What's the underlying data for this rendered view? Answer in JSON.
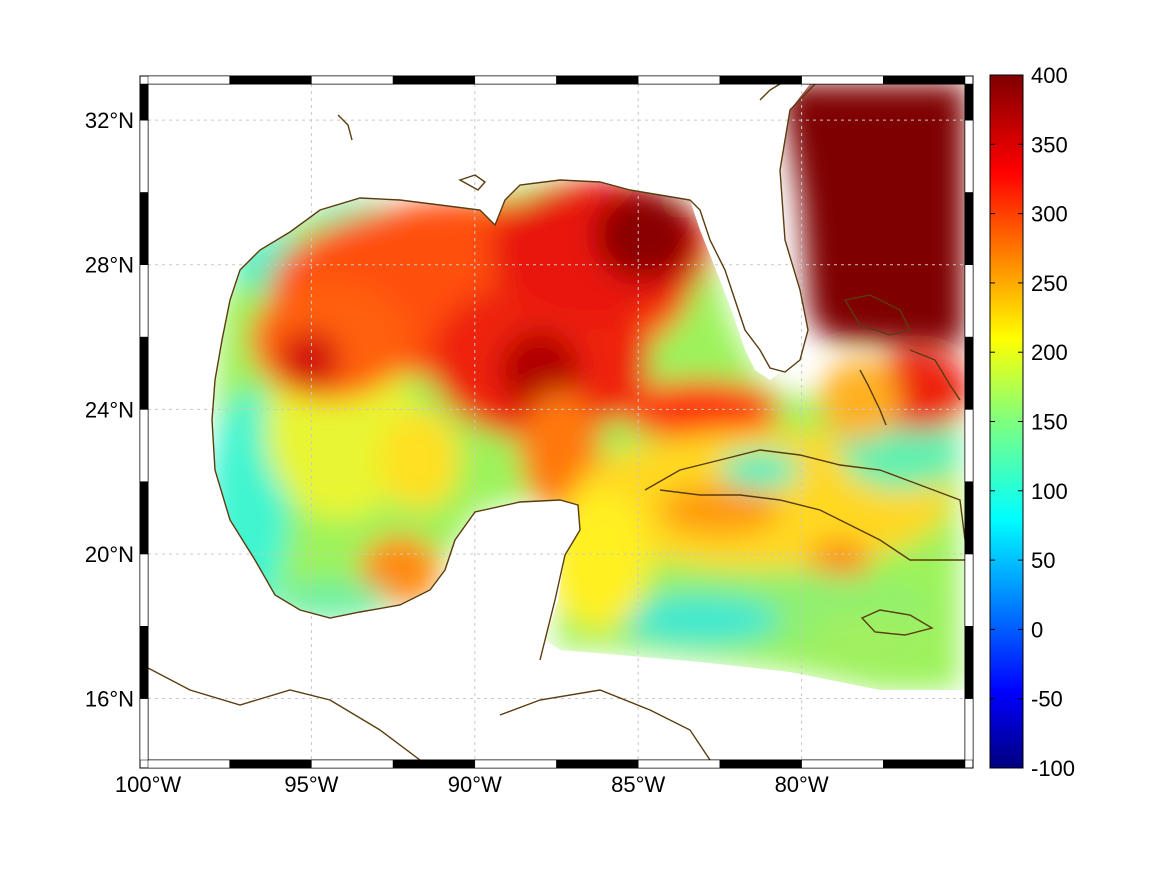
{
  "map": {
    "x_axis": {
      "ticks": [
        {
          "value": -100,
          "label": "100°W"
        },
        {
          "value": -95,
          "label": "95°W"
        },
        {
          "value": -90,
          "label": "90°W"
        },
        {
          "value": -85,
          "label": "85°W"
        },
        {
          "value": -80,
          "label": "80°W"
        }
      ],
      "range": [
        -100,
        -75
      ]
    },
    "y_axis": {
      "ticks": [
        {
          "value": 32,
          "label": "32°N"
        },
        {
          "value": 28,
          "label": "28°N"
        },
        {
          "value": 24,
          "label": "24°N"
        },
        {
          "value": 20,
          "label": "20°N"
        },
        {
          "value": 16,
          "label": "16°N"
        }
      ],
      "range": [
        14.3,
        33
      ]
    },
    "grid": true,
    "colorbar": {
      "range": [
        -100,
        400
      ],
      "ticks": [
        "400",
        "350",
        "300",
        "250",
        "200",
        "150",
        "100",
        "50",
        "0",
        "-50",
        "-100"
      ],
      "colormap": "jet",
      "colors": [
        "#00007f",
        "#0000ff",
        "#007fff",
        "#00ffff",
        "#7fff7f",
        "#ffff00",
        "#ff7f00",
        "#ff0000",
        "#7f0000"
      ]
    },
    "coast_color": "#5a3c0f"
  }
}
